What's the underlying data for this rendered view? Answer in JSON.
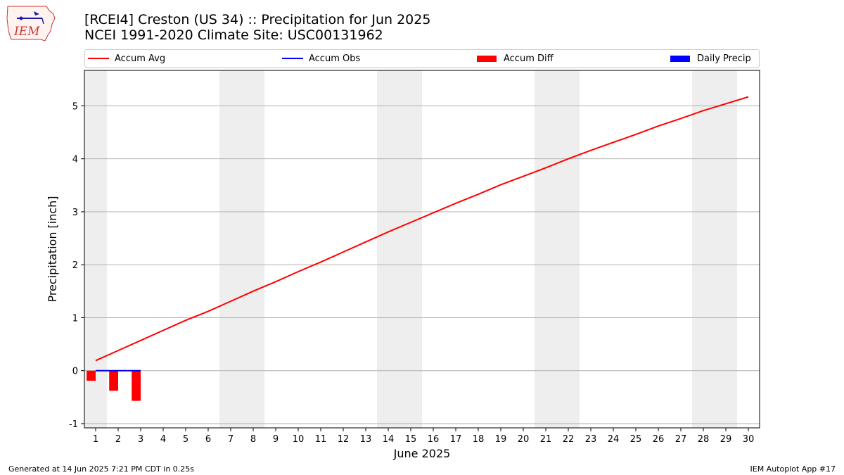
{
  "header": {
    "title_line1": "[RCEI4] Creston (US 34) :: Precipitation for Jun 2025",
    "title_line2": "NCEI 1991-2020 Climate Site: USC00131962",
    "logo_text": "IEM"
  },
  "legend": {
    "placement": "top",
    "items": [
      {
        "label": "Accum Avg",
        "kind": "line",
        "color": "#ff0000"
      },
      {
        "label": "Accum Obs",
        "kind": "line",
        "color": "#0000ff"
      },
      {
        "label": "Accum Diff",
        "kind": "patch",
        "color": "#ff0000"
      },
      {
        "label": "Daily Precip",
        "kind": "patch",
        "color": "#0000ff"
      }
    ]
  },
  "footer": {
    "generated": "Generated at 14 Jun 2025 7:21 PM CDT in 0.25s",
    "app": "IEM Autoplot App #17"
  },
  "chart_data": {
    "type": "line",
    "xlabel": "June 2025",
    "ylabel": "Precipitation [inch]",
    "xlim": [
      0.5,
      30.5
    ],
    "ylim": [
      -1.08,
      5.67
    ],
    "yticks": [
      -1,
      0,
      1,
      2,
      3,
      4,
      5
    ],
    "x": [
      1,
      2,
      3,
      4,
      5,
      6,
      7,
      8,
      9,
      10,
      11,
      12,
      13,
      14,
      15,
      16,
      17,
      18,
      19,
      20,
      21,
      22,
      23,
      24,
      25,
      26,
      27,
      28,
      29,
      30
    ],
    "weekend_shading": [
      [
        0.5,
        1.5
      ],
      [
        6.5,
        8.5
      ],
      [
        13.5,
        15.5
      ],
      [
        20.5,
        22.5
      ],
      [
        27.5,
        29.5
      ]
    ],
    "grid": "y",
    "series": [
      {
        "name": "Accum Avg",
        "type": "line",
        "color": "#ff0000",
        "values": [
          0.19,
          0.38,
          0.57,
          0.76,
          0.95,
          1.12,
          1.31,
          1.5,
          1.68,
          1.87,
          2.05,
          2.24,
          2.43,
          2.62,
          2.8,
          2.98,
          3.16,
          3.33,
          3.51,
          3.67,
          3.83,
          4.0,
          4.16,
          4.31,
          4.46,
          4.62,
          4.76,
          4.91,
          5.04,
          5.17
        ]
      },
      {
        "name": "Accum Obs",
        "type": "line",
        "color": "#0000ff",
        "x": [
          1,
          2,
          3
        ],
        "values": [
          0.0,
          0.0,
          0.0
        ]
      },
      {
        "name": "Accum Diff",
        "type": "bar",
        "color": "#ff0000",
        "x": [
          1,
          2,
          3
        ],
        "values": [
          -0.19,
          -0.38,
          -0.57
        ]
      },
      {
        "name": "Daily Precip",
        "type": "bar",
        "color": "#0000ff",
        "x": [
          1,
          2,
          3
        ],
        "values": [
          0.0,
          0.0,
          0.0
        ]
      }
    ]
  }
}
